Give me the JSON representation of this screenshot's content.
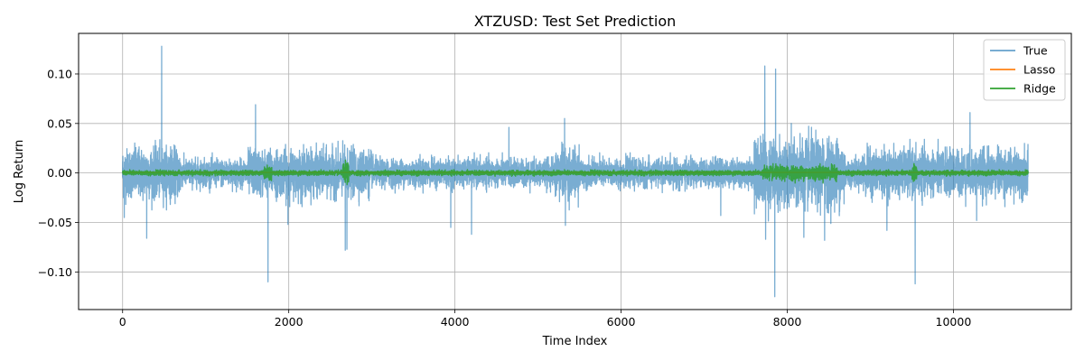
{
  "chart_data": {
    "type": "line",
    "title": "XTZUSD: Test Set Prediction",
    "xlabel": "Time Index",
    "ylabel": "Log Return",
    "xlim": [
      -530,
      11420
    ],
    "ylim": [
      -0.138,
      0.141
    ],
    "xticks": [
      0,
      2000,
      4000,
      6000,
      8000,
      10000
    ],
    "xtick_labels": [
      "0",
      "2000",
      "4000",
      "6000",
      "8000",
      "10000"
    ],
    "yticks": [
      -0.1,
      -0.05,
      0.0,
      0.05,
      0.1
    ],
    "ytick_labels": [
      "−0.10",
      "−0.05",
      "0.00",
      "0.05",
      "0.10"
    ],
    "grid": true,
    "legend_position": "top-right",
    "colors": {
      "True": "#1f77b4",
      "Lasso": "#ff7f0e",
      "Ridge": "#2ca02c"
    },
    "series": [
      {
        "name": "True",
        "n_points": 10900,
        "baseline_amplitude": 0.012,
        "volatile_regimes": [
          {
            "x": [
              0,
              700
            ],
            "amplitude": 0.022
          },
          {
            "x": [
              1500,
              3000
            ],
            "amplitude": 0.02
          },
          {
            "x": [
              5200,
              5500
            ],
            "amplitude": 0.022
          },
          {
            "x": [
              7600,
              8700
            ],
            "amplitude": 0.03
          },
          {
            "x": [
              8900,
              10900
            ],
            "amplitude": 0.02
          }
        ],
        "spikes": [
          {
            "x": 20,
            "y": -0.045
          },
          {
            "x": 290,
            "y": -0.066
          },
          {
            "x": 470,
            "y": 0.128
          },
          {
            "x": 1600,
            "y": 0.069
          },
          {
            "x": 1750,
            "y": -0.11
          },
          {
            "x": 1990,
            "y": -0.052
          },
          {
            "x": 2680,
            "y": -0.078
          },
          {
            "x": 2700,
            "y": -0.077
          },
          {
            "x": 3950,
            "y": -0.055
          },
          {
            "x": 4200,
            "y": -0.062
          },
          {
            "x": 4650,
            "y": 0.046
          },
          {
            "x": 5320,
            "y": 0.055
          },
          {
            "x": 5330,
            "y": -0.053
          },
          {
            "x": 7200,
            "y": -0.043
          },
          {
            "x": 7730,
            "y": 0.108
          },
          {
            "x": 7740,
            "y": -0.067
          },
          {
            "x": 7850,
            "y": -0.125
          },
          {
            "x": 7860,
            "y": 0.105
          },
          {
            "x": 8200,
            "y": -0.065
          },
          {
            "x": 8450,
            "y": -0.068
          },
          {
            "x": 9200,
            "y": -0.058
          },
          {
            "x": 9540,
            "y": -0.112
          },
          {
            "x": 10200,
            "y": 0.061
          },
          {
            "x": 10280,
            "y": -0.048
          }
        ]
      },
      {
        "name": "Lasso",
        "n_points": 10900,
        "constant_value": 0.0005
      },
      {
        "name": "Ridge",
        "n_points": 10900,
        "baseline_amplitude": 0.002,
        "volatile_regimes": [
          {
            "x": [
              1700,
              1800
            ],
            "amplitude": 0.006
          },
          {
            "x": [
              2650,
              2720
            ],
            "amplitude": 0.009
          },
          {
            "x": [
              7700,
              8600
            ],
            "amplitude": 0.006
          },
          {
            "x": [
              9500,
              9560
            ],
            "amplitude": 0.007
          }
        ]
      }
    ]
  }
}
